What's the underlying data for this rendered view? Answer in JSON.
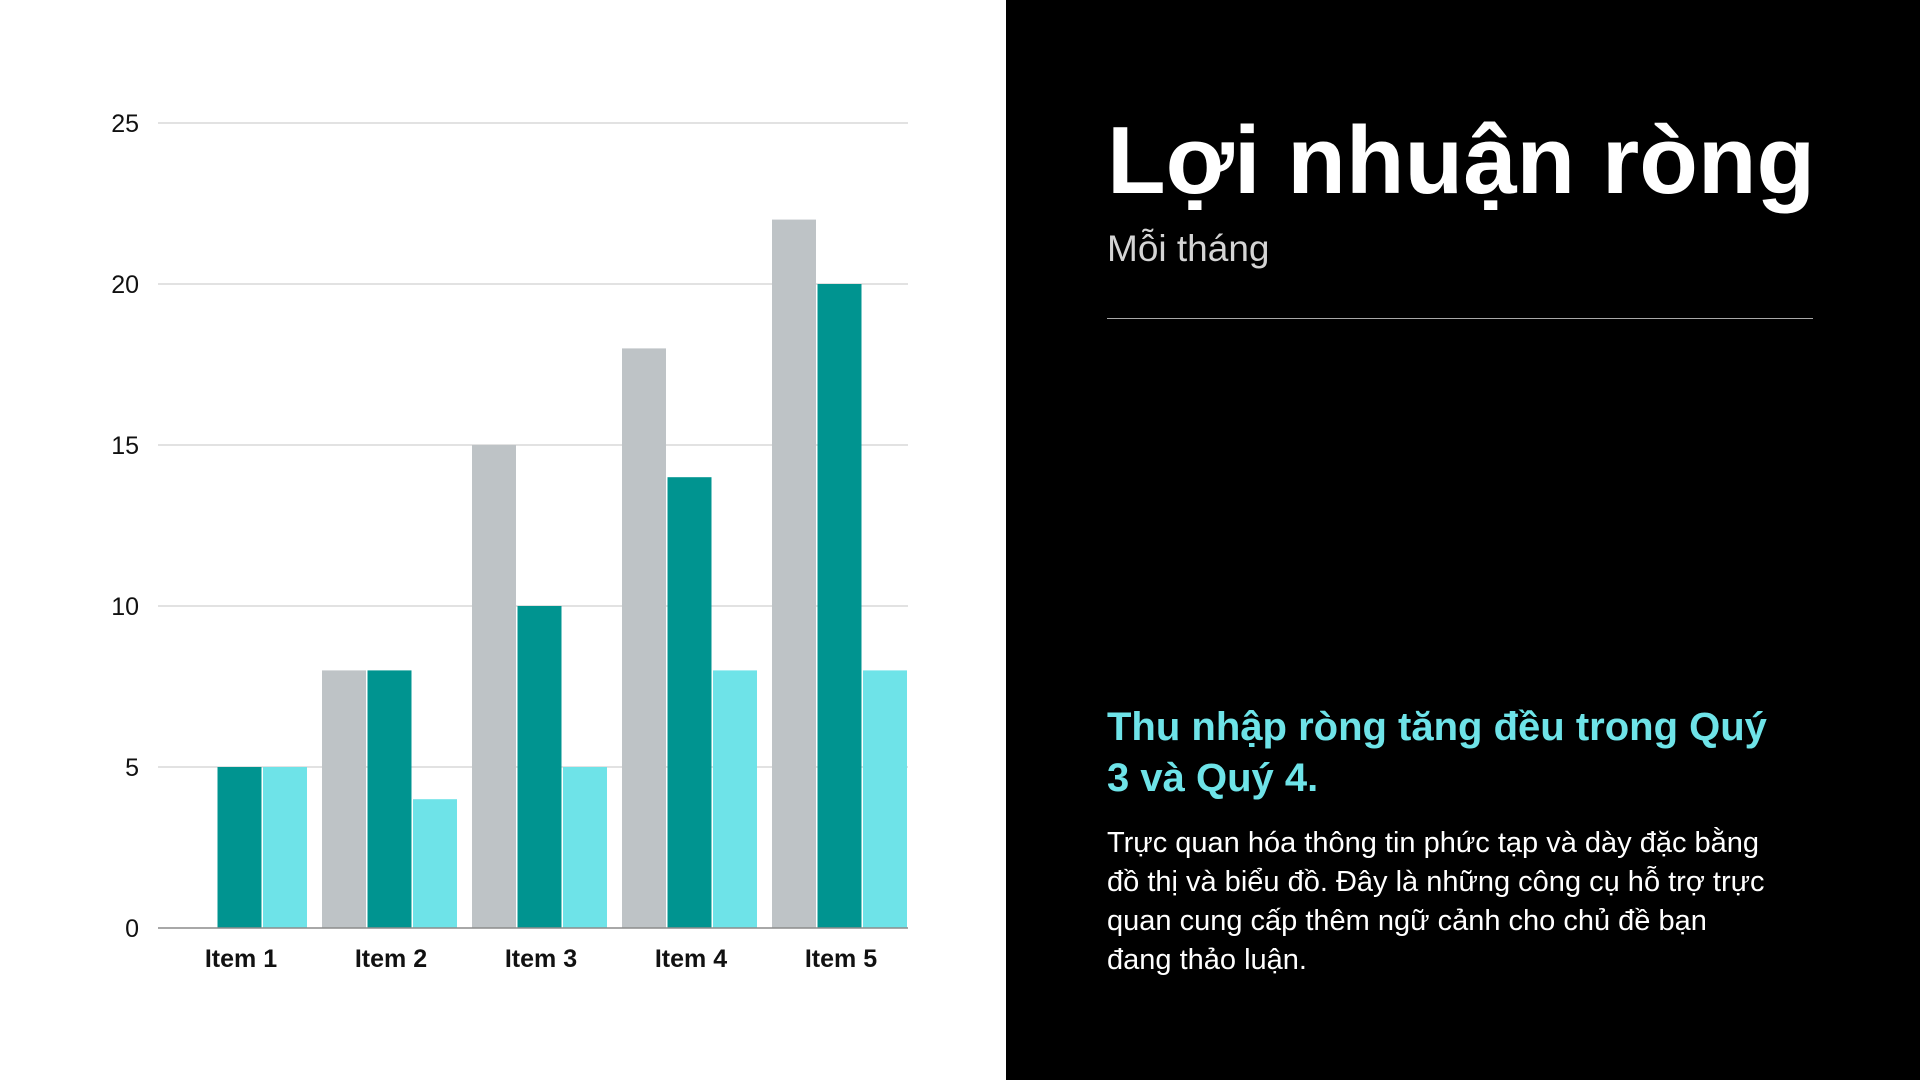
{
  "header": {
    "title": "Lợi nhuận ròng",
    "subtitle": "Mỗi tháng"
  },
  "highlight": "Thu nhập ròng tăng đều trong Quý 3 và Quý 4.",
  "body": "Trực quan hóa thông tin phức tạp và dày đặc bằng đồ thị và biểu đồ. Đây là những công cụ hỗ trợ trực quan cung cấp thêm ngữ cảnh cho chủ đề bạn đang thảo luận.",
  "colors": {
    "series_1": "#bec3c6",
    "series_2": "#009490",
    "series_3": "#6ee3e8",
    "panel_background": "#000000",
    "highlight_text": "#6ee3e8"
  },
  "chart_data": {
    "type": "bar",
    "categories": [
      "Item 1",
      "Item 2",
      "Item 3",
      "Item 4",
      "Item 5"
    ],
    "series": [
      {
        "values": [
          0,
          8,
          15,
          18,
          22
        ]
      },
      {
        "values": [
          5,
          8,
          10,
          14,
          20
        ]
      },
      {
        "values": [
          5,
          4,
          5,
          8,
          8
        ]
      }
    ],
    "ylim": [
      0,
      25
    ],
    "yticks": [
      0,
      5,
      10,
      15,
      20,
      25
    ],
    "grid": true,
    "legend": "none"
  }
}
